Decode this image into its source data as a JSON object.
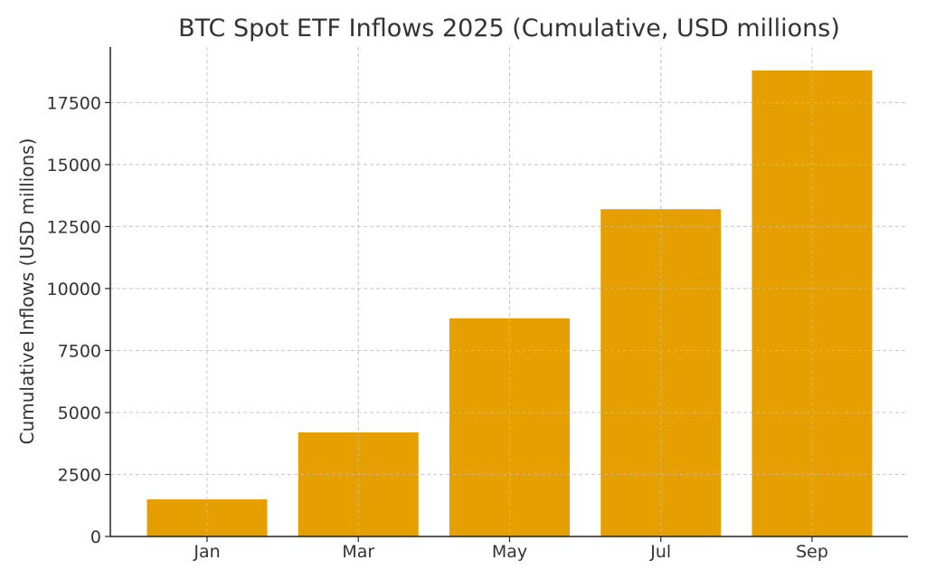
{
  "chart_data": {
    "type": "bar",
    "title": "BTC Spot ETF Inflows 2025 (Cumulative, USD millions)",
    "xlabel": "",
    "ylabel": "Cumulative Inflows (USD millions)",
    "categories": [
      "Jan",
      "Mar",
      "May",
      "Jul",
      "Sep"
    ],
    "values": [
      1500,
      4200,
      8800,
      13200,
      18800
    ],
    "ylim": [
      0,
      19740
    ],
    "yticks": [
      0,
      2500,
      5000,
      7500,
      10000,
      12500,
      15000,
      17500
    ],
    "ytick_labels": [
      "0",
      "2500",
      "5000",
      "7500",
      "10000",
      "12500",
      "15000",
      "17500"
    ],
    "bar_color": "#e5a000",
    "grid": true,
    "legend": "none"
  }
}
